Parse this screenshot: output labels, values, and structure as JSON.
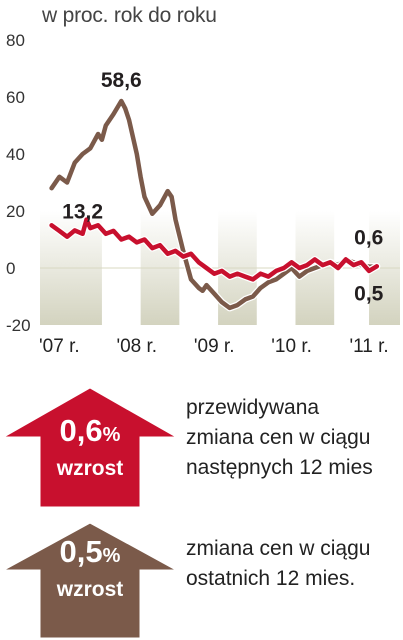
{
  "subtitle": "w proc. rok do roku",
  "chart_data": {
    "type": "line",
    "ylabel": "w proc. rok do roku",
    "ylim": [
      -20,
      80
    ],
    "yticks": [
      "80",
      "60",
      "40",
      "20",
      "0",
      "-20"
    ],
    "ytick_values": [
      80,
      60,
      40,
      20,
      0,
      -20
    ],
    "xticks": [
      "'07 r.",
      "'08 r.",
      "'09 r.",
      "'10 r.",
      "'11 r."
    ],
    "xtick_positions": [
      2007.0,
      2008.0,
      2009.0,
      2010.0,
      2011.0
    ],
    "xlim": [
      2006.75,
      2011.4
    ],
    "shaded_bands": [
      [
        2006.75,
        2007.55
      ],
      [
        2008.05,
        2008.55
      ],
      [
        2009.05,
        2009.55
      ],
      [
        2010.05,
        2010.55
      ],
      [
        2011.0,
        2011.4
      ]
    ],
    "series": [
      {
        "color": "#7b5a4a",
        "x": [
          2006.9,
          2007.0,
          2007.1,
          2007.2,
          2007.3,
          2007.4,
          2007.5,
          2007.55,
          2007.6,
          2007.7,
          2007.8,
          2007.85,
          2007.9,
          2008.0,
          2008.05,
          2008.1,
          2008.2,
          2008.3,
          2008.4,
          2008.45,
          2008.5,
          2008.6,
          2008.65,
          2008.7,
          2008.8,
          2008.85,
          2008.9,
          2009.0,
          2009.1,
          2009.2,
          2009.3,
          2009.4,
          2009.5,
          2009.6,
          2009.7,
          2009.8,
          2009.9,
          2010.0,
          2010.1,
          2010.2,
          2010.3,
          2010.4,
          2010.5,
          2010.6,
          2010.7,
          2010.8,
          2010.9,
          2011.0,
          2011.1
        ],
        "values": [
          28,
          32,
          30,
          37,
          40,
          42,
          47,
          45,
          50,
          54,
          58.6,
          56,
          52,
          40,
          32,
          25,
          19,
          22,
          27,
          25,
          17,
          6,
          1,
          -4,
          -7,
          -8,
          -6,
          -9,
          -12,
          -14,
          -13,
          -11,
          -10,
          -7,
          -5,
          -4,
          -2,
          0,
          -3,
          -1,
          0,
          1,
          2,
          1,
          3,
          2,
          1,
          0.5,
          0.5
        ],
        "data_labels": [
          {
            "x": 2007.8,
            "y": 58.6,
            "text": "58,6"
          },
          {
            "x": 2011.1,
            "y": 0.5,
            "text": "0,5"
          }
        ]
      },
      {
        "color": "#c8102e",
        "x": [
          2006.9,
          2007.0,
          2007.1,
          2007.2,
          2007.3,
          2007.35,
          2007.4,
          2007.5,
          2007.6,
          2007.7,
          2007.8,
          2007.9,
          2008.0,
          2008.1,
          2008.2,
          2008.3,
          2008.4,
          2008.5,
          2008.6,
          2008.7,
          2008.8,
          2008.9,
          2009.0,
          2009.1,
          2009.2,
          2009.3,
          2009.4,
          2009.5,
          2009.6,
          2009.7,
          2009.8,
          2009.9,
          2010.0,
          2010.1,
          2010.2,
          2010.3,
          2010.4,
          2010.5,
          2010.6,
          2010.7,
          2010.8,
          2010.9,
          2011.0,
          2011.1
        ],
        "values": [
          15,
          13,
          11,
          13.2,
          12,
          17,
          14,
          15,
          12,
          13,
          10,
          11,
          9,
          10,
          7,
          8,
          5,
          6,
          4,
          5,
          2,
          0,
          -2,
          -1,
          -3,
          -2,
          -3,
          -4,
          -2,
          -3,
          -1,
          0,
          2,
          0,
          1,
          3,
          1,
          2,
          0,
          3,
          1,
          2,
          -1,
          0.6
        ],
        "data_labels": [
          {
            "x": 2007.3,
            "y": 13.2,
            "text": "13,2"
          },
          {
            "x": 2011.1,
            "y": 0.6,
            "text": "0,6"
          }
        ]
      }
    ]
  },
  "legend": [
    {
      "percent": "0,6",
      "unit": "%",
      "word": "wzrost",
      "color": "#c8102e",
      "description": "przewidywana\nzmiana cen w ciągu\nnastępnych 12 mies"
    },
    {
      "percent": "0,5",
      "unit": "%",
      "word": "wzrost",
      "color": "#7b5a4a",
      "description": "zmiana cen w ciągu\nostatnich 12 mies."
    }
  ],
  "colors": {
    "band": "#d3d3bf",
    "gridline": "#cfcfcf",
    "axis_line": "#d8d8c2"
  }
}
